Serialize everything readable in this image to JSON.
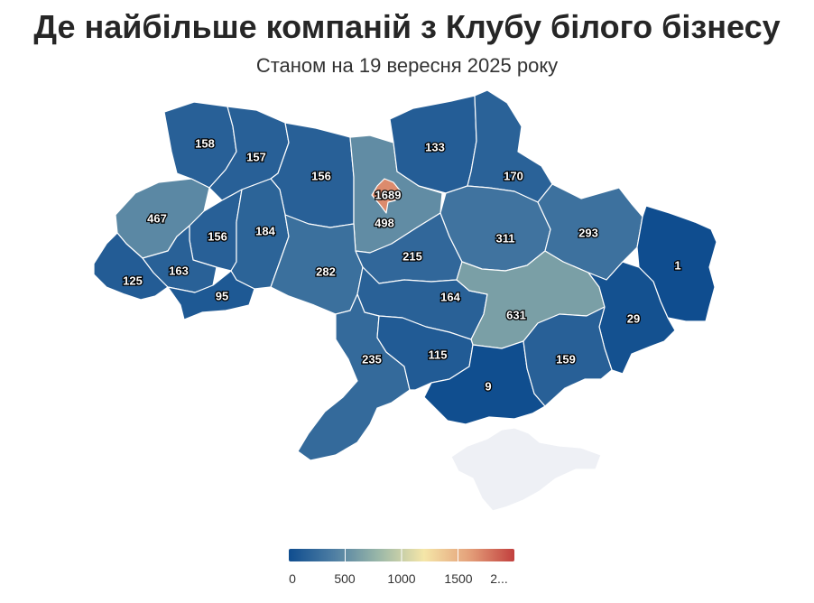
{
  "title": "Де найбільше компаній з Клубу білого бізнесу",
  "subtitle": "Станом на 19 вересня 2025 року",
  "colors": {
    "scale": [
      "#0f4d8f",
      "#4e7ea3",
      "#9bb8a8",
      "#f5e6a8",
      "#e4a07a",
      "#c2403e"
    ],
    "no_data": "#eef0f5",
    "border": "#ffffff"
  },
  "map_data": {
    "type": "choropleth",
    "domain": [
      0,
      2000
    ],
    "regions": [
      {
        "id": "volyn",
        "value": 158,
        "label": "158"
      },
      {
        "id": "rivne",
        "value": 157,
        "label": "157"
      },
      {
        "id": "zhytomyr",
        "value": 156,
        "label": "156"
      },
      {
        "id": "kyiv-oblast",
        "value": 498,
        "label": "498"
      },
      {
        "id": "kyiv-city",
        "value": 1689,
        "label": "1689"
      },
      {
        "id": "chernihiv",
        "value": 133,
        "label": "133"
      },
      {
        "id": "sumy",
        "value": 170,
        "label": "170"
      },
      {
        "id": "lviv",
        "value": 467,
        "label": "467"
      },
      {
        "id": "ternopil",
        "value": 156,
        "label": "156"
      },
      {
        "id": "khmelnytskyi",
        "value": 184,
        "label": "184"
      },
      {
        "id": "vinnytsia",
        "value": 282,
        "label": "282"
      },
      {
        "id": "cherkasy",
        "value": 215,
        "label": "215"
      },
      {
        "id": "poltava",
        "value": 311,
        "label": "311"
      },
      {
        "id": "kharkiv",
        "value": 293,
        "label": "293"
      },
      {
        "id": "luhansk",
        "value": 1,
        "label": "1"
      },
      {
        "id": "zakarpattia",
        "value": 125,
        "label": "125"
      },
      {
        "id": "ivano-frankivsk",
        "value": 163,
        "label": "163"
      },
      {
        "id": "chernivtsi",
        "value": 95,
        "label": "95"
      },
      {
        "id": "kirovohrad",
        "value": 164,
        "label": "164"
      },
      {
        "id": "dnipropetrovsk",
        "value": 631,
        "label": "631"
      },
      {
        "id": "donetsk",
        "value": 29,
        "label": "29"
      },
      {
        "id": "odesa",
        "value": 235,
        "label": "235"
      },
      {
        "id": "mykolaiv",
        "value": 115,
        "label": "115"
      },
      {
        "id": "kherson",
        "value": 9,
        "label": "9"
      },
      {
        "id": "zaporizhzhia",
        "value": 159,
        "label": "159"
      },
      {
        "id": "crimea",
        "value": null,
        "label": ""
      }
    ]
  },
  "legend": {
    "ticks": [
      "0",
      "500",
      "1000",
      "1500",
      "2..."
    ]
  }
}
